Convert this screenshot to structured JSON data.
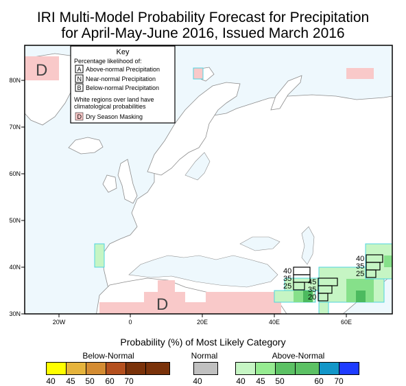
{
  "title_line1": "IRI Multi-Model Probability Forecast for Precipitation",
  "title_line2": "for April-May-June 2016, Issued March 2016",
  "key": {
    "title": "Key",
    "subtitle": "Percentage likelihood of:",
    "items": [
      {
        "code": "A",
        "label": "Above-normal Precipitation"
      },
      {
        "code": "N",
        "label": "Near-normal Precipitation"
      },
      {
        "code": "B",
        "label": "Below-normal Precipitation"
      }
    ],
    "note_line1": "White regions over land have",
    "note_line2": "climatological probabilities",
    "dry_code": "D",
    "dry_label": "Dry Season Masking"
  },
  "map": {
    "lat_labels": [
      "80N",
      "70N",
      "60N",
      "50N",
      "40N",
      "30N"
    ],
    "lon_labels": [
      "20W",
      "0",
      "20E",
      "40E",
      "60E"
    ],
    "dry_marks": [
      "D",
      "D"
    ],
    "box_group_1": [
      "40",
      "35",
      "25"
    ],
    "box_group_2": [
      "45",
      "35",
      "20"
    ],
    "box_group_3": [
      "40",
      "35",
      "25"
    ],
    "colors": {
      "ocean": "#eef8fd",
      "dry": "#f9c9c9",
      "above_light": "#c6f5c4",
      "above_mid": "#86e08a",
      "above_dark": "#4cba5f",
      "near_cyan": "#4fd4e0",
      "land_outline": "#8c8c8c"
    }
  },
  "legend": {
    "title": "Probability (%) of Most Likely Category",
    "below_label": "Below-Normal",
    "normal_label": "Normal",
    "above_label": "Above-Normal",
    "below_ticks": [
      "40",
      "45",
      "50",
      "60",
      "70"
    ],
    "normal_ticks": [
      "40"
    ],
    "above_ticks": [
      "40",
      "45",
      "50",
      "60",
      "70"
    ],
    "below_colors": [
      "#ffff00",
      "#e6b43c",
      "#d48c32",
      "#b4501e",
      "#7a320a"
    ],
    "normal_colors": [
      "#c0c0c0"
    ],
    "above_colors": [
      "#c6f5c4",
      "#96eb91",
      "#5cc164",
      "#1296c8",
      "#1e3cff"
    ]
  }
}
